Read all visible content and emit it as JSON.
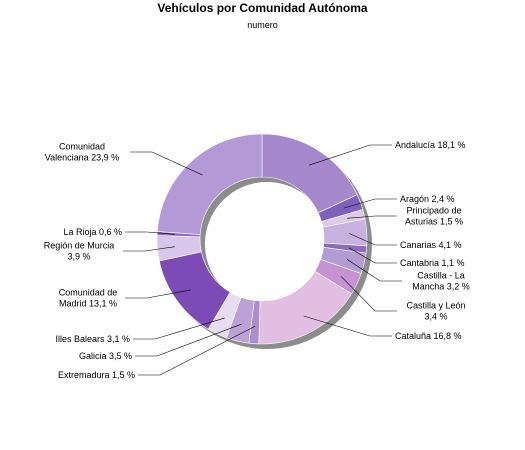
{
  "chart_data": {
    "type": "pie",
    "variant": "donut",
    "title": "Vehículos por Comunidad Autónoma",
    "subtitle": "numero",
    "legend": "none",
    "slices": [
      {
        "lines": [
          "Andalucía 18,1 %"
        ],
        "value": 18.1,
        "color": "#a589cc"
      },
      {
        "lines": [
          "Aragón 2,4 %"
        ],
        "value": 2.4,
        "color": "#8060bd"
      },
      {
        "lines": [
          "Principado de",
          "Asturias 1,5 %"
        ],
        "value": 1.5,
        "color": "#dccbe9"
      },
      {
        "lines": [
          "Canarias 4,1 %"
        ],
        "value": 4.1,
        "color": "#c7b1de"
      },
      {
        "lines": [
          "Cantabria 1,1 %"
        ],
        "value": 1.1,
        "color": "#8d6cbf"
      },
      {
        "lines": [
          "Castilla - La",
          "Mancha 3,2 %"
        ],
        "value": 3.2,
        "color": "#b39bd3"
      },
      {
        "lines": [
          "Castilla y León",
          "3,4 %"
        ],
        "value": 3.4,
        "color": "#c592d2"
      },
      {
        "lines": [
          "Cataluña 16,8 %"
        ],
        "value": 16.8,
        "color": "#e2bfe2"
      },
      {
        "lines": [
          "Extremadura 1,5 %"
        ],
        "value": 1.5,
        "color": "#a98dcd"
      },
      {
        "lines": [
          "Galicia 3,5 %"
        ],
        "value": 3.5,
        "color": "#baa1d6"
      },
      {
        "lines": [
          "Illes Balears 3,1 %"
        ],
        "value": 3.1,
        "color": "#e7dcf0"
      },
      {
        "lines": [
          "Comunidad de",
          "Madrid 13,1 %"
        ],
        "value": 13.1,
        "color": "#7c4bb5"
      },
      {
        "lines": [
          "Región de Murcia",
          "3,9 %"
        ],
        "value": 3.9,
        "color": "#d8c7ea"
      },
      {
        "lines": [
          "La Rioja 0,6 %"
        ],
        "value": 0.6,
        "color": "#8b6cc0"
      },
      {
        "lines": [
          "Comunidad",
          "Valenciana 23,9 %"
        ],
        "value": 23.9,
        "color": "#b39ad6"
      }
    ]
  }
}
